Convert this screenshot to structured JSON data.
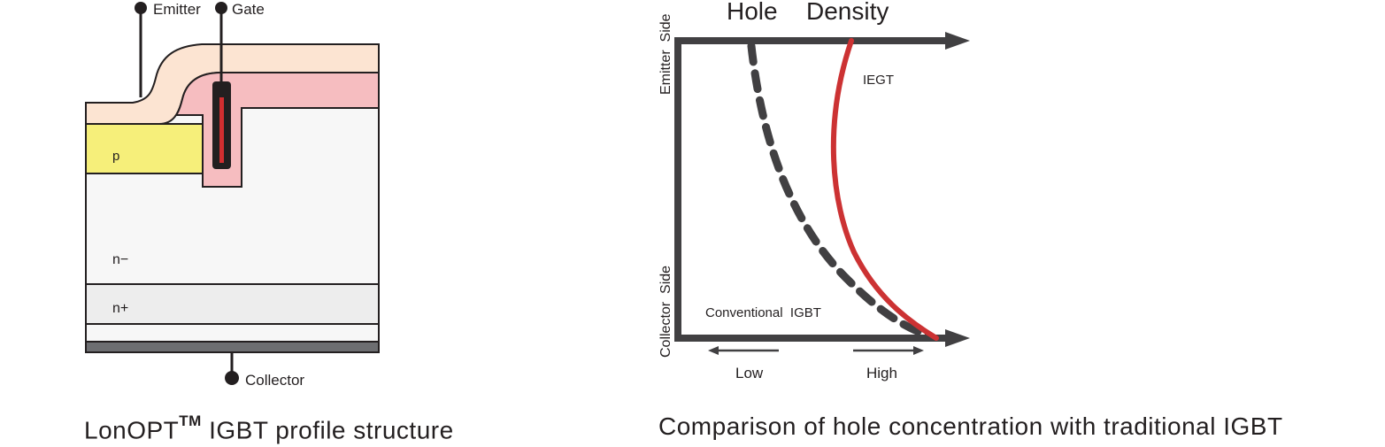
{
  "left_figure": {
    "terminals": {
      "emitter": "Emitter",
      "gate": "Gate",
      "collector": "Collector"
    },
    "regions": {
      "p": "p",
      "n_minus": "n−",
      "n_plus": "n+"
    },
    "caption": {
      "prefix": "LonOPT",
      "superscript": "TM",
      "suffix": " IGBT profile structure"
    }
  },
  "right_figure": {
    "title_left": "Hole",
    "title_right": "Density",
    "y_axis_top_label": "Emitter  Side",
    "y_axis_bottom_label": "Collector  Side",
    "curve_labels": {
      "iegt": "IEGT",
      "conventional": "Conventional  IGBT"
    },
    "x_arrows": {
      "low": "Low",
      "high": "High"
    },
    "caption": "Comparison of hole concentration with traditional IGBT"
  },
  "colors": {
    "outline": "#231f20",
    "p_region": "#f6ef7a",
    "gate_oxide": "#f6bdc0",
    "top_layer": "#fce4d2",
    "n_minus": "#f7f7f7",
    "n_plus": "#ededed",
    "collector_metal": "#6d6e71",
    "gate_electrode": "#d12e30",
    "axis": "#414042",
    "iegt_curve": "#cc3233",
    "conventional_curve": "#414042"
  }
}
